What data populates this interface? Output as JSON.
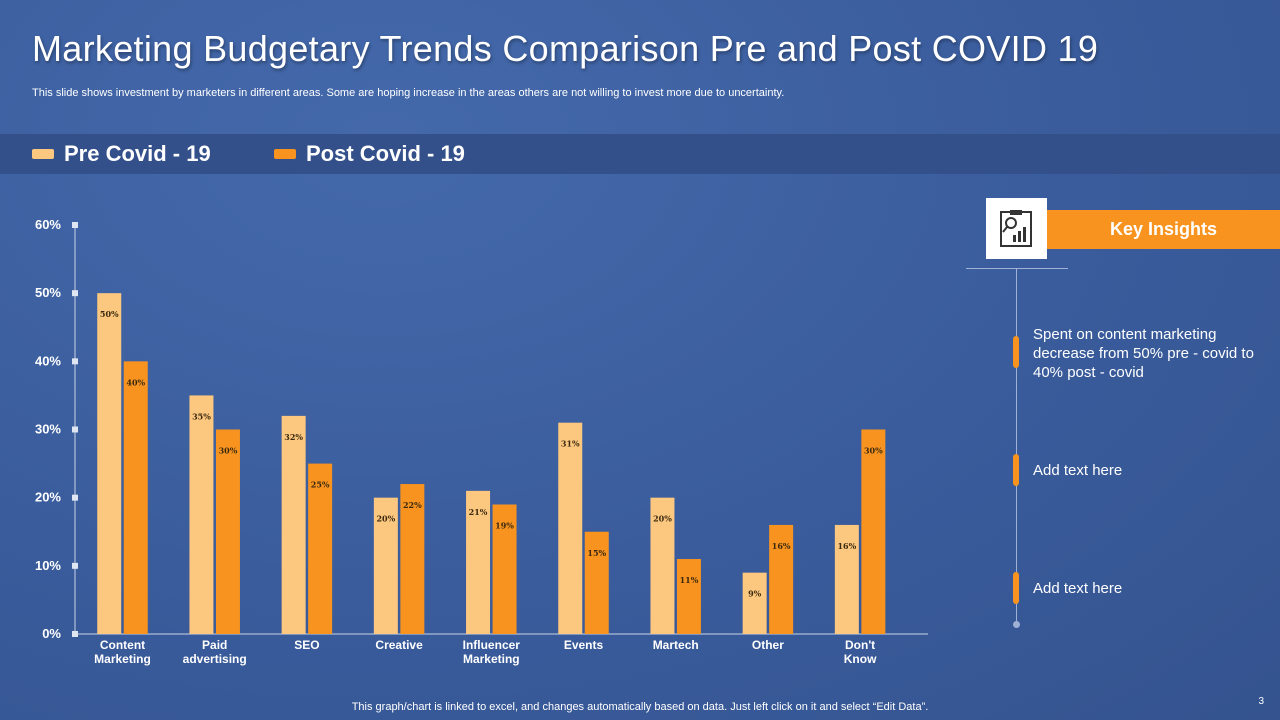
{
  "slide": {
    "title": "Marketing Budgetary Trends Comparison Pre and Post COVID 19",
    "subtitle": "This slide shows investment by marketers in different areas. Some are hoping increase in the areas others are not willing to invest more due to uncertainty.",
    "footer": "This graph/chart is linked to excel, and changes automatically based on data. Just left click on it and select “Edit Data”.",
    "page_number": "3"
  },
  "colors": {
    "pre": "#fcc77e",
    "post": "#f7931e",
    "background": "#3a5c9c",
    "accent": "#f7931e"
  },
  "chart_data": {
    "type": "bar",
    "categories": [
      "Content Marketing",
      "Paid advertising",
      "SEO",
      "Creative",
      "Influencer Marketing",
      "Events",
      "Martech",
      "Other",
      "Don't Know"
    ],
    "series": [
      {
        "name": "Pre Covid - 19",
        "values": [
          50,
          35,
          32,
          20,
          21,
          31,
          20,
          9,
          16
        ],
        "value_labels": [
          "50%",
          "35%",
          "32%",
          "20%",
          "21%",
          "31%",
          "20%",
          "9%",
          "16%"
        ]
      },
      {
        "name": "Post Covid - 19",
        "values": [
          40,
          30,
          25,
          22,
          19,
          15,
          11,
          16,
          30
        ],
        "value_labels": [
          "40%",
          "30%",
          "25%",
          "22%",
          "19%",
          "15%",
          "11%",
          "16%",
          "30%"
        ]
      }
    ],
    "y_ticks": [
      "0%",
      "10%",
      "20%",
      "30%",
      "40%",
      "50%",
      "60%"
    ],
    "ylim": [
      0,
      60
    ],
    "legend_position": "top-left",
    "grid": false
  },
  "insights": {
    "icon": "chart-analysis-icon",
    "title": "Key Insights",
    "items": [
      {
        "text": "Spent on content marketing decrease from 50% pre - covid to 40% post - covid"
      },
      {
        "text": "Add text here"
      },
      {
        "text": "Add text here"
      }
    ]
  }
}
